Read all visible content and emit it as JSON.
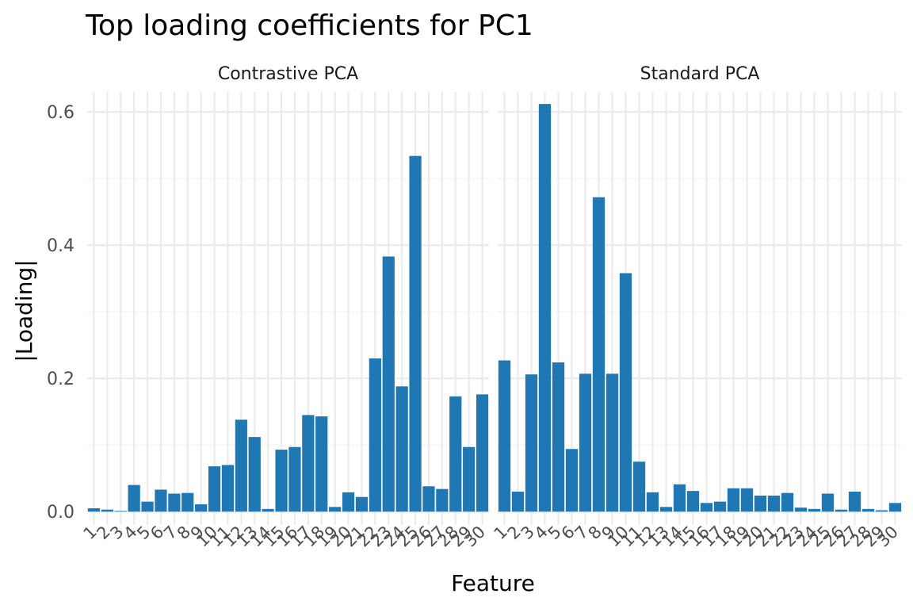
{
  "chart_data": {
    "type": "bar",
    "title": "Top loading coefficients for PC1",
    "xlabel": "Feature",
    "ylabel": "|Loading|",
    "ylim": [
      -0.02,
      0.63
    ],
    "y_ticks": [
      0.0,
      0.2,
      0.4,
      0.6
    ],
    "y_tick_labels": [
      "0.0",
      "0.2",
      "0.4",
      "0.6"
    ],
    "grid": true,
    "bar_color": "#1f77b4",
    "categories": [
      "1",
      "2",
      "3",
      "4",
      "5",
      "6",
      "7",
      "8",
      "9",
      "10",
      "11",
      "12",
      "13",
      "14",
      "15",
      "16",
      "17",
      "18",
      "19",
      "20",
      "21",
      "22",
      "23",
      "24",
      "25",
      "26",
      "27",
      "28",
      "29",
      "30"
    ],
    "panels": [
      {
        "label": "Contrastive PCA",
        "values": [
          0.005,
          0.003,
          0.001,
          0.04,
          0.015,
          0.033,
          0.027,
          0.028,
          0.011,
          0.068,
          0.07,
          0.138,
          0.112,
          0.004,
          0.093,
          0.097,
          0.145,
          0.143,
          0.007,
          0.029,
          0.022,
          0.23,
          0.383,
          0.188,
          0.534,
          0.038,
          0.034,
          0.173,
          0.097,
          0.176
        ]
      },
      {
        "label": "Standard PCA",
        "values": [
          0.227,
          0.03,
          0.206,
          0.612,
          0.224,
          0.094,
          0.207,
          0.472,
          0.207,
          0.358,
          0.075,
          0.029,
          0.007,
          0.041,
          0.031,
          0.013,
          0.015,
          0.035,
          0.035,
          0.024,
          0.024,
          0.028,
          0.006,
          0.004,
          0.027,
          0.003,
          0.03,
          0.004,
          0.002,
          0.013
        ]
      }
    ]
  }
}
